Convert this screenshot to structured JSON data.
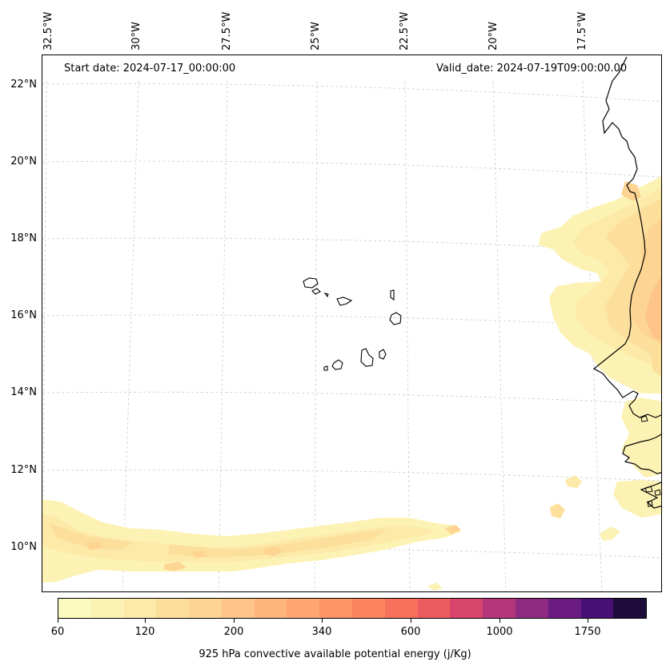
{
  "map": {
    "start_date": "Start date: 2024-07-17_00:00:00",
    "valid_date": "Valid_date: 2024-07-19T09:00:00.00",
    "longitude_labels": [
      "32.5°W",
      "30°W",
      "27.5°W",
      "25°W",
      "22.5°W",
      "20°W",
      "17.5°W"
    ],
    "latitude_labels": [
      "22°N",
      "20°N",
      "18°N",
      "16°N",
      "14°N",
      "12°N",
      "10°N"
    ],
    "coastline_color": "#000000",
    "gridline_color": "#cccccc"
  },
  "colorbar": {
    "title": "925 hPa convective available potential energy (j/Kg)",
    "tick_labels": [
      "60",
      "120",
      "200",
      "340",
      "600",
      "1000",
      "1750"
    ],
    "colors": [
      "#fcfbbf",
      "#fcf2b3",
      "#fde9a8",
      "#fddf9c",
      "#fed492",
      "#fec488",
      "#feb57c",
      "#fea572",
      "#fd9567",
      "#fb845f",
      "#f6705b",
      "#ec5c5e",
      "#d8456c",
      "#b5367a",
      "#8f2a81",
      "#6a1c81",
      "#461077",
      "#1e0c3c"
    ]
  }
}
